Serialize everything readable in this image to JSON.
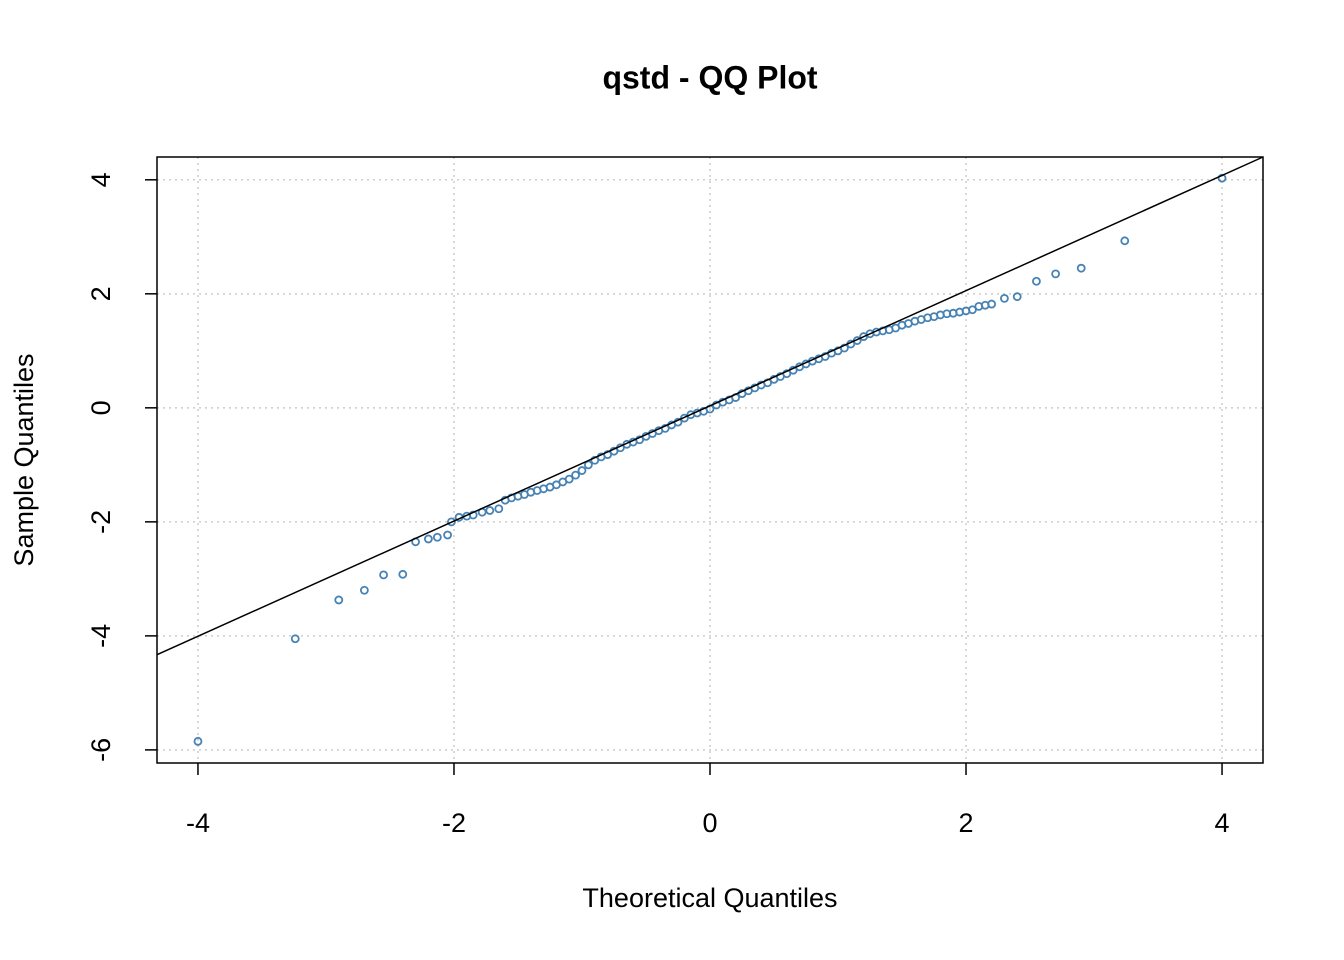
{
  "chart_data": {
    "type": "scatter",
    "title": "qstd - QQ Plot",
    "x_label": "Theoretical Quantiles",
    "y_label": "Sample Quantiles",
    "color": "#4682b4",
    "grid": true,
    "xlim": [
      -4.32,
      4.32
    ],
    "ylim": [
      -6.23,
      4.4
    ],
    "xticks": [
      -4,
      -2,
      0,
      2,
      4
    ],
    "yticks": [
      -6,
      -4,
      -2,
      0,
      2,
      4
    ],
    "x": [
      -4,
      -3.24,
      -2.9,
      -2.7,
      -2.55,
      -2.4,
      -2.3,
      -2.2,
      -2.13,
      -2.05,
      -2.02,
      -1.96,
      -1.9,
      -1.85,
      -1.78,
      -1.72,
      -1.65,
      -1.6,
      -1.55,
      -1.5,
      -1.45,
      -1.4,
      -1.35,
      -1.3,
      -1.25,
      -1.2,
      -1.15,
      -1.1,
      -1.05,
      -1.0,
      -0.95,
      -0.9,
      -0.85,
      -0.8,
      -0.75,
      -0.7,
      -0.65,
      -0.6,
      -0.55,
      -0.5,
      -0.45,
      -0.4,
      -0.35,
      -0.3,
      -0.25,
      -0.2,
      -0.15,
      -0.1,
      -0.05,
      0,
      0.05,
      0.1,
      0.15,
      0.2,
      0.25,
      0.3,
      0.35,
      0.4,
      0.45,
      0.5,
      0.55,
      0.6,
      0.65,
      0.7,
      0.75,
      0.8,
      0.85,
      0.9,
      0.95,
      1.0,
      1.05,
      1.1,
      1.15,
      1.2,
      1.25,
      1.3,
      1.35,
      1.4,
      1.45,
      1.5,
      1.55,
      1.6,
      1.65,
      1.7,
      1.75,
      1.8,
      1.85,
      1.9,
      1.95,
      2.0,
      2.05,
      2.1,
      2.15,
      2.2,
      2.3,
      2.4,
      2.55,
      2.7,
      2.9,
      3.24,
      4
    ],
    "y": [
      -5.85,
      -4.05,
      -3.37,
      -3.2,
      -2.93,
      -2.92,
      -2.35,
      -2.3,
      -2.27,
      -2.23,
      -2.0,
      -1.92,
      -1.9,
      -1.88,
      -1.83,
      -1.8,
      -1.77,
      -1.62,
      -1.58,
      -1.55,
      -1.52,
      -1.48,
      -1.45,
      -1.42,
      -1.39,
      -1.35,
      -1.3,
      -1.25,
      -1.18,
      -1.1,
      -1.0,
      -0.92,
      -0.86,
      -0.82,
      -0.76,
      -0.7,
      -0.64,
      -0.6,
      -0.56,
      -0.5,
      -0.45,
      -0.4,
      -0.36,
      -0.3,
      -0.25,
      -0.18,
      -0.12,
      -0.09,
      -0.06,
      -0.02,
      0.05,
      0.1,
      0.14,
      0.18,
      0.25,
      0.3,
      0.35,
      0.4,
      0.44,
      0.5,
      0.55,
      0.6,
      0.66,
      0.72,
      0.77,
      0.82,
      0.86,
      0.9,
      0.96,
      1.0,
      1.05,
      1.12,
      1.18,
      1.25,
      1.3,
      1.33,
      1.35,
      1.37,
      1.4,
      1.45,
      1.48,
      1.52,
      1.55,
      1.58,
      1.6,
      1.63,
      1.65,
      1.66,
      1.68,
      1.7,
      1.72,
      1.78,
      1.8,
      1.82,
      1.92,
      1.95,
      2.22,
      2.35,
      2.45,
      2.93,
      4.03
    ],
    "line": {
      "x": [
        -4.32,
        4.32
      ],
      "y": [
        -4.33,
        4.4
      ]
    }
  }
}
